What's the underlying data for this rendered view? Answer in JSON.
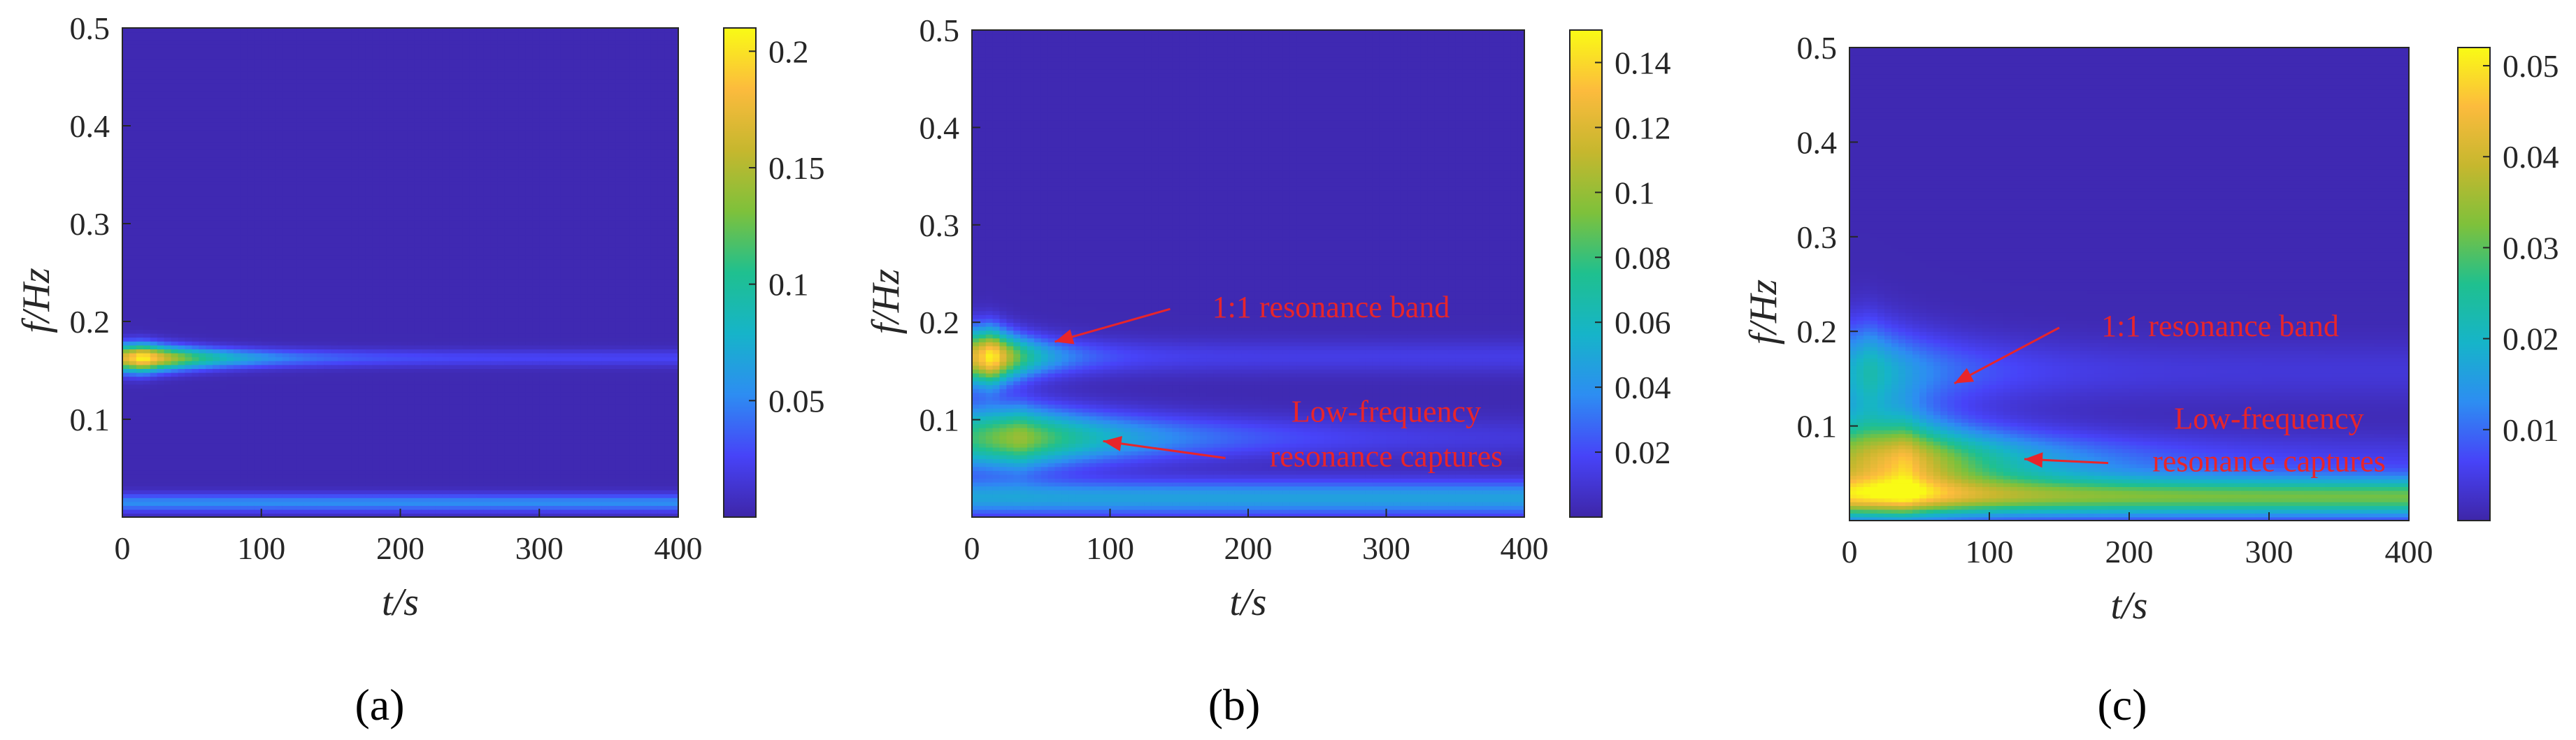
{
  "colors": {
    "background_field": "#3b2fc0",
    "annotation": "#e8252a",
    "axis": "#262626",
    "colormap": [
      "#3e26a8",
      "#4743f8",
      "#2d8df2",
      "#16b4c9",
      "#1fc08f",
      "#7ec13b",
      "#c6b72e",
      "#fcbb3d",
      "#f9fb15"
    ]
  },
  "chart_data": [
    {
      "type": "heatmap",
      "panel_label": "(a)",
      "xlabel": "t/s",
      "ylabel": "f/Hz",
      "xlim": [
        0,
        400
      ],
      "ylim": [
        0,
        0.5
      ],
      "xticks": [
        "0",
        "100",
        "200",
        "300",
        "400"
      ],
      "yticks": [
        "0.1",
        "0.2",
        "0.3",
        "0.4",
        "0.5"
      ],
      "colorbar": {
        "min": 0,
        "max": 0.21,
        "ticks": [
          "0.05",
          "0.1",
          "0.15",
          "0.2"
        ]
      },
      "features": [
        {
          "t_start": 0,
          "t_end": 400,
          "f": 0.163,
          "peak": 0.21,
          "peak_t": 15,
          "f_width": 0.006,
          "decay": 50,
          "floor": 0.022
        },
        {
          "t_start": 0,
          "t_end": 400,
          "f": 0.015,
          "peak": 0.05,
          "peak_t": 0,
          "f_width": 0.004,
          "decay": 10000,
          "floor": 0.05
        }
      ],
      "annotations": []
    },
    {
      "type": "heatmap",
      "panel_label": "(b)",
      "xlabel": "t/s",
      "ylabel": "f/Hz",
      "xlim": [
        0,
        400
      ],
      "ylim": [
        0,
        0.5
      ],
      "xticks": [
        "0",
        "100",
        "200",
        "300",
        "400"
      ],
      "yticks": [
        "0.1",
        "0.2",
        "0.3",
        "0.4",
        "0.5"
      ],
      "colorbar": {
        "min": 0,
        "max": 0.15,
        "ticks": [
          "0.02",
          "0.04",
          "0.06",
          "0.08",
          "0.1",
          "0.12",
          "0.14"
        ]
      },
      "features": [
        {
          "t_start": 0,
          "t_end": 400,
          "f": 0.165,
          "peak": 0.15,
          "peak_t": 15,
          "f_width": 0.012,
          "decay": 30,
          "floor": 0.012
        },
        {
          "t_start": 0,
          "t_end": 400,
          "f": 0.082,
          "peak": 0.1,
          "peak_t": 35,
          "f_width": 0.014,
          "decay": 90,
          "floor": 0.008
        },
        {
          "t_start": 0,
          "t_end": 400,
          "f": 0.02,
          "peak": 0.045,
          "peak_t": 0,
          "f_width": 0.008,
          "decay": 10000,
          "floor": 0.045
        }
      ],
      "annotations": [
        {
          "text": "1:1 resonance band",
          "x": 260,
          "y": 0.205,
          "arrow_to": [
            60,
            0.18
          ]
        },
        {
          "text": "Low-frequency",
          "x": 300,
          "y": 0.098,
          "arrow_to": null
        },
        {
          "text": "resonance captures",
          "x": 300,
          "y": 0.052,
          "arrow_to": [
            95,
            0.078
          ]
        }
      ]
    },
    {
      "type": "heatmap",
      "panel_label": "(c)",
      "xlabel": "t/s",
      "ylabel": "f/Hz",
      "xlim": [
        0,
        400
      ],
      "ylim": [
        0,
        0.5
      ],
      "xticks": [
        "0",
        "100",
        "200",
        "300",
        "400"
      ],
      "yticks": [
        "0.1",
        "0.2",
        "0.3",
        "0.4",
        "0.5"
      ],
      "colorbar": {
        "min": 0,
        "max": 0.052,
        "ticks": [
          "0.01",
          "0.02",
          "0.03",
          "0.04",
          "0.05"
        ]
      },
      "features": [
        {
          "t_start": 0,
          "t_end": 400,
          "f": 0.158,
          "peak": 0.022,
          "peak_t": 15,
          "f_width": 0.022,
          "decay": 55,
          "floor": 0.003
        },
        {
          "t_start": 0,
          "t_end": 400,
          "f": 0.062,
          "peak": 0.046,
          "peak_t": 40,
          "f_width": 0.02,
          "decay": 80,
          "floor": 0.004
        },
        {
          "t_start": 0,
          "t_end": 400,
          "f": 0.025,
          "peak": 0.03,
          "peak_t": 0,
          "f_width": 0.009,
          "decay": 10000,
          "floor": 0.03
        }
      ],
      "annotations": [
        {
          "text": "1:1 resonance band",
          "x": 265,
          "y": 0.195,
          "arrow_to": [
            75,
            0.145
          ]
        },
        {
          "text": "Low-frequency",
          "x": 300,
          "y": 0.097,
          "arrow_to": null
        },
        {
          "text": "resonance captures",
          "x": 300,
          "y": 0.052,
          "arrow_to": [
            125,
            0.065
          ]
        }
      ]
    }
  ]
}
